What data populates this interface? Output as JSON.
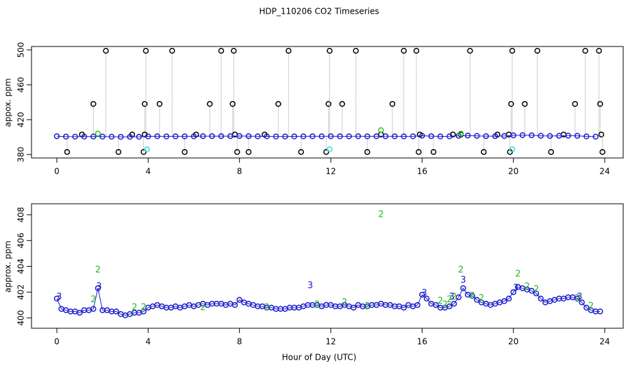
{
  "chart_data": [
    {
      "type": "scatter",
      "title": "HDP_110206  CO2 Timeseries",
      "ylabel": "appox. ppm",
      "xlim": [
        -1.11,
        24.81
      ],
      "ylim": [
        376.1,
        503.9
      ],
      "xticks": [
        0,
        4,
        8,
        12,
        16,
        20,
        24
      ],
      "yticks": [
        380,
        420,
        460,
        500
      ],
      "series": [
        {
          "color": "#000000",
          "drops": true,
          "x": [
            0.45,
            1.1,
            1.6,
            2.15,
            2.7,
            3.3,
            3.8,
            3.85,
            3.9,
            3.85,
            4.5,
            5.05,
            5.6,
            6.1,
            6.7,
            7.2,
            7.75,
            7.7,
            7.8,
            7.9,
            8.4,
            9.1,
            9.7,
            10.15,
            10.7,
            11.8,
            11.9,
            11.95,
            12.5,
            13.1,
            13.6,
            14.2,
            14.7,
            15.2,
            15.75,
            15.85,
            15.9,
            16.5,
            17.35,
            17.7,
            18.1,
            18.7,
            19.3,
            19.85,
            19.9,
            19.95,
            19.8,
            20.5,
            21.05,
            21.65,
            22.2,
            22.7,
            23.15,
            23.75,
            23.8,
            23.85,
            23.9
          ],
          "values": [
            383,
            403,
            438,
            499,
            383,
            403,
            383,
            438,
            499,
            403,
            438,
            499,
            383,
            403,
            438,
            499,
            499,
            438,
            403,
            383,
            383,
            403,
            438,
            499,
            383,
            383,
            438,
            499,
            438,
            499,
            383,
            403,
            438,
            499,
            499,
            383,
            403,
            383,
            403,
            403,
            499,
            383,
            403,
            383,
            438,
            499,
            403,
            438,
            499,
            383,
            403,
            438,
            499,
            499,
            438,
            403,
            383
          ]
        },
        {
          "color": "#1a1acc",
          "line": true,
          "x": [
            0,
            0.4,
            0.8,
            1.2,
            1.6,
            2.0,
            2.4,
            2.8,
            3.2,
            3.6,
            4.0,
            4.4,
            4.8,
            5.2,
            5.6,
            6.0,
            6.4,
            6.8,
            7.2,
            7.6,
            8.0,
            8.4,
            8.8,
            9.2,
            9.6,
            10.0,
            10.4,
            10.8,
            11.2,
            11.6,
            12.0,
            12.4,
            12.8,
            13.2,
            13.6,
            14.0,
            14.4,
            14.8,
            15.2,
            15.6,
            16.0,
            16.4,
            16.8,
            17.2,
            17.6,
            18.0,
            18.4,
            18.8,
            19.2,
            19.6,
            20.0,
            20.4,
            20.8,
            21.2,
            21.6,
            22.0,
            22.4,
            22.8,
            23.2,
            23.6
          ],
          "values": [
            401,
            400.6,
            400.5,
            400.6,
            400.7,
            400.6,
            400.5,
            400.3,
            400.3,
            400.4,
            400.8,
            401,
            400.8,
            400.9,
            400.9,
            400.9,
            401.1,
            401.1,
            401.1,
            401.1,
            401.3,
            401.1,
            400.9,
            400.9,
            400.7,
            400.7,
            400.8,
            400.9,
            401,
            400.9,
            401,
            400.9,
            400.9,
            401,
            400.9,
            401,
            401,
            400.9,
            400.8,
            400.9,
            401.6,
            401.1,
            400.8,
            400.9,
            401.5,
            401.8,
            401.4,
            401.1,
            401.1,
            401.3,
            402,
            402.3,
            402.1,
            401.5,
            401.3,
            401.5,
            401.6,
            401.5,
            400.8,
            400.5
          ]
        },
        {
          "color": "#22cc22",
          "x": [
            1.8,
            14.2,
            17.7
          ],
          "values": [
            404,
            408,
            404
          ]
        },
        {
          "color": "#33dddd",
          "x": [
            3.95,
            11.95,
            19.95
          ],
          "values": [
            386,
            386,
            386
          ]
        }
      ]
    },
    {
      "type": "scatter",
      "ylabel": "approx. ppm",
      "xlabel": "Hour of Day (UTC)",
      "xlim": [
        -1.11,
        24.81
      ],
      "ylim": [
        399.2,
        408.85
      ],
      "xticks": [
        0,
        4,
        8,
        12,
        16,
        20,
        24
      ],
      "yticks": [
        400,
        402,
        404,
        406,
        408
      ],
      "series": [
        {
          "color": "#1a1acc",
          "line": true,
          "x": [
            0,
            0.2,
            0.4,
            0.6,
            0.8,
            1.0,
            1.2,
            1.4,
            1.6,
            1.8,
            2.0,
            2.2,
            2.4,
            2.6,
            2.8,
            3.0,
            3.2,
            3.4,
            3.6,
            3.8,
            4.0,
            4.2,
            4.4,
            4.6,
            4.8,
            5.0,
            5.2,
            5.4,
            5.6,
            5.8,
            6.0,
            6.2,
            6.4,
            6.6,
            6.8,
            7.0,
            7.2,
            7.4,
            7.6,
            7.8,
            8.0,
            8.2,
            8.4,
            8.6,
            8.8,
            9.0,
            9.2,
            9.4,
            9.6,
            9.8,
            10.0,
            10.2,
            10.4,
            10.6,
            10.8,
            11.0,
            11.2,
            11.4,
            11.6,
            11.8,
            12.0,
            12.2,
            12.4,
            12.6,
            12.8,
            13.0,
            13.2,
            13.4,
            13.6,
            13.8,
            14.0,
            14.2,
            14.4,
            14.6,
            14.8,
            15.0,
            15.2,
            15.4,
            15.6,
            15.8,
            16.0,
            16.2,
            16.4,
            16.6,
            16.8,
            17.0,
            17.2,
            17.4,
            17.6,
            17.8,
            18.0,
            18.2,
            18.4,
            18.6,
            18.8,
            19.0,
            19.2,
            19.4,
            19.6,
            19.8,
            20.0,
            20.2,
            20.4,
            20.6,
            20.8,
            21.0,
            21.2,
            21.4,
            21.6,
            21.8,
            22.0,
            22.2,
            22.4,
            22.6,
            22.8,
            23.0,
            23.2,
            23.4,
            23.6,
            23.8
          ],
          "values": [
            401.5,
            400.7,
            400.6,
            400.5,
            400.5,
            400.4,
            400.6,
            400.6,
            400.7,
            402.3,
            400.6,
            400.6,
            400.5,
            400.5,
            400.3,
            400.2,
            400.3,
            400.4,
            400.4,
            400.5,
            400.8,
            400.9,
            401,
            400.9,
            400.8,
            400.8,
            400.9,
            400.8,
            400.9,
            401,
            400.9,
            401,
            401.1,
            401,
            401.1,
            401.1,
            401.1,
            401,
            401.1,
            401,
            401.4,
            401.2,
            401.1,
            401,
            400.9,
            400.9,
            400.8,
            400.8,
            400.7,
            400.7,
            400.7,
            400.8,
            400.8,
            400.8,
            400.9,
            401,
            401,
            401,
            400.9,
            401,
            401,
            400.9,
            400.9,
            401,
            400.9,
            400.8,
            401,
            400.9,
            400.9,
            401,
            401,
            401.1,
            401,
            401,
            400.9,
            400.9,
            400.8,
            401,
            400.9,
            401,
            401.8,
            401.5,
            401.1,
            401,
            400.8,
            400.8,
            400.9,
            401.1,
            401.6,
            402.3,
            401.8,
            401.7,
            401.4,
            401.2,
            401.1,
            401,
            401.1,
            401.2,
            401.3,
            401.5,
            402,
            402.4,
            402.3,
            402.2,
            402.1,
            401.9,
            401.5,
            401.2,
            401.3,
            401.4,
            401.5,
            401.5,
            401.6,
            401.6,
            401.5,
            401.2,
            400.8,
            400.6,
            400.5,
            400.5
          ]
        },
        {
          "color": "#22bb22",
          "marker": "2",
          "x": [
            1.6,
            1.8,
            3.4,
            3.8,
            6.4,
            9.2,
            11.4,
            12.6,
            13.6,
            14.2,
            16.8,
            17.0,
            17.2,
            17.4,
            17.7,
            18.2,
            18.6,
            20.2,
            20.6,
            21.0,
            22.8,
            23.4
          ],
          "values": [
            401.4,
            403.7,
            400.8,
            400.8,
            400.8,
            400.8,
            401,
            401.2,
            400.9,
            408,
            401.3,
            401,
            401.4,
            401.6,
            403.7,
            401.7,
            401.5,
            403.4,
            402.4,
            402.2,
            401.5,
            400.9
          ]
        },
        {
          "color": "#1a1acc",
          "marker": "3",
          "x": [
            0.1,
            1.85,
            11.1,
            16.1,
            17.3,
            17.8,
            20.1,
            22.9
          ],
          "values": [
            401.6,
            402.4,
            402.5,
            401.9,
            401.6,
            402.9,
            402.3,
            401.6
          ]
        }
      ]
    }
  ]
}
